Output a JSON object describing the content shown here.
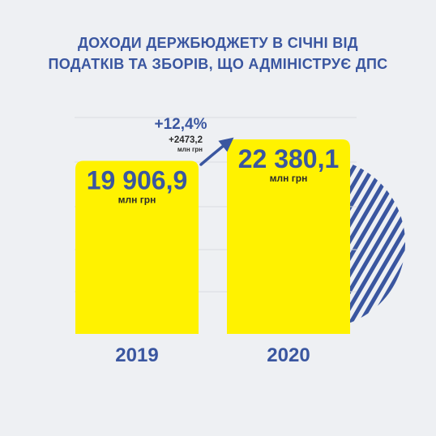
{
  "title": {
    "line1": "ДОХОДИ ДЕРЖБЮДЖЕТУ В СІЧНІ ВІД",
    "line2": "ПОДАТКІВ ТА ЗБОРІВ, ЩО АДМІНІСТРУЄ ДПС"
  },
  "colors": {
    "bar": "#fff200",
    "accent": "#3a56a0",
    "dark": "#2b2b2b"
  },
  "chart_data": {
    "type": "bar",
    "title": "ДОХОДИ ДЕРЖБЮДЖЕТУ В СІЧНІ ВІД ПОДАТКІВ ТА ЗБОРІВ, ЩО АДМІНІСТРУЄ ДПС",
    "categories": [
      "2019",
      "2020"
    ],
    "values": [
      19906.9,
      22380.1
    ],
    "value_labels": [
      "19 906,9",
      "22 380,1"
    ],
    "unit_label": "млн грн",
    "ylim": [
      0,
      22380.1
    ],
    "grid": true,
    "change": {
      "percent": "+12,4%",
      "absolute": "+2473,2",
      "unit": "млн грн"
    }
  }
}
